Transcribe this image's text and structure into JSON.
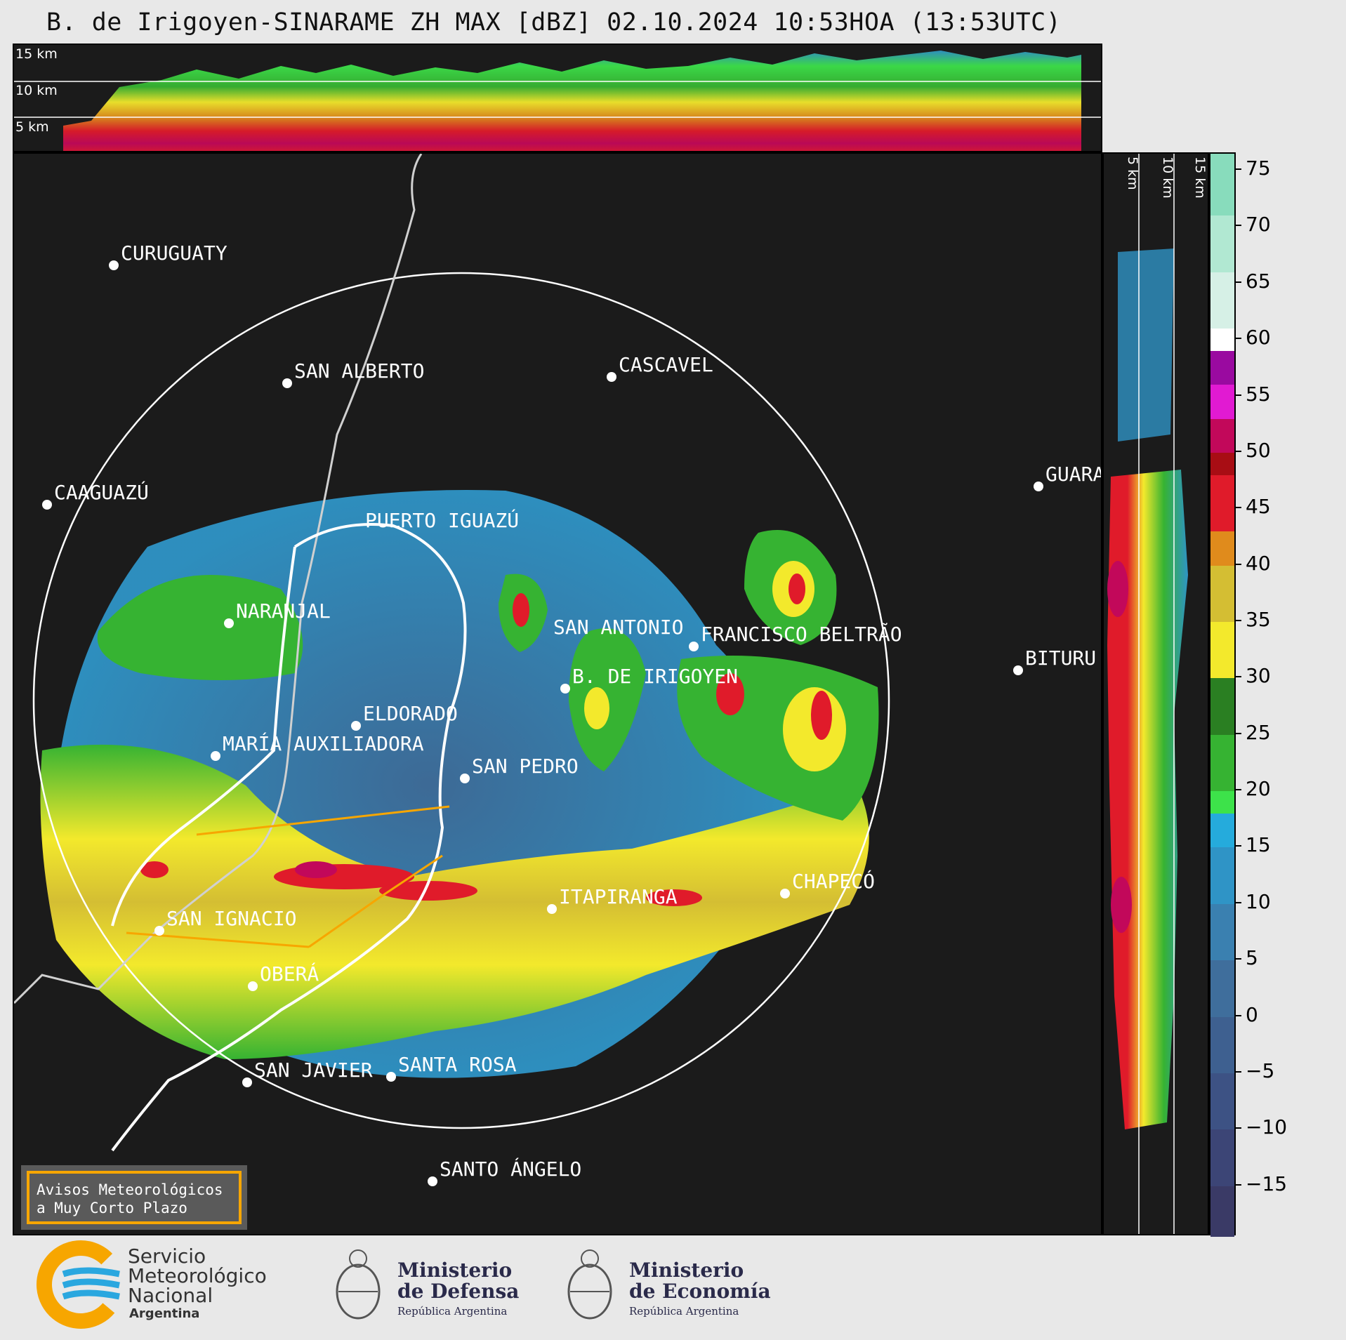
{
  "title": "B. de Irigoyen-SINARAME ZH MAX [dBZ] 02.10.2024 10:53HOA (13:53UTC)",
  "top_profile": {
    "height_labels": [
      "15 km",
      "10 km",
      "5 km"
    ]
  },
  "side_profile": {
    "height_labels": [
      "5 km",
      "10 km",
      "15 km"
    ]
  },
  "cities": [
    {
      "name": "CURUGUATY"
    },
    {
      "name": "SAN ALBERTO"
    },
    {
      "name": "CASCAVEL"
    },
    {
      "name": "CAAGUAZÚ"
    },
    {
      "name": "GUARA"
    },
    {
      "name": "PUERTO IGUAZÚ"
    },
    {
      "name": "NARANJAL"
    },
    {
      "name": "SAN ANTONIO"
    },
    {
      "name": "FRANCISCO BELTRÃO"
    },
    {
      "name": "BITURU"
    },
    {
      "name": "B. DE IRIGOYEN"
    },
    {
      "name": "ELDORADO"
    },
    {
      "name": "MARÍA AUXILIADORA"
    },
    {
      "name": "SAN PEDRO"
    },
    {
      "name": "ITAPIRANGA"
    },
    {
      "name": "CHAPECÓ"
    },
    {
      "name": "SAN IGNACIO"
    },
    {
      "name": "OBERÁ"
    },
    {
      "name": "SAN JAVIER"
    },
    {
      "name": "SANTA ROSA"
    },
    {
      "name": "SANTO ÁNGELO"
    }
  ],
  "colorbar": {
    "unit": "dBZ",
    "ticks": [
      "75",
      "70",
      "65",
      "60",
      "55",
      "50",
      "45",
      "40",
      "35",
      "30",
      "25",
      "20",
      "15",
      "10",
      "5",
      "0",
      "−5",
      "−10",
      "−15"
    ],
    "range": [
      -19.5,
      76.5
    ],
    "colors": [
      {
        "from": -19.5,
        "to": -15,
        "color": "#3a3a66"
      },
      {
        "from": -15,
        "to": -10,
        "color": "#3c4576"
      },
      {
        "from": -10,
        "to": -5,
        "color": "#3d5284"
      },
      {
        "from": -5,
        "to": 0,
        "color": "#3e6090"
      },
      {
        "from": 0,
        "to": 5,
        "color": "#3f6e9c"
      },
      {
        "from": 5,
        "to": 10,
        "color": "#3a80b0"
      },
      {
        "from": 10,
        "to": 15,
        "color": "#2f94c6"
      },
      {
        "from": 15,
        "to": 18,
        "color": "#25abdc"
      },
      {
        "from": 18,
        "to": 20,
        "color": "#3de24a"
      },
      {
        "from": 20,
        "to": 25,
        "color": "#36b332"
      },
      {
        "from": 25,
        "to": 30,
        "color": "#2a7f22"
      },
      {
        "from": 30,
        "to": 35,
        "color": "#f3e92c"
      },
      {
        "from": 35,
        "to": 40,
        "color": "#d4be33"
      },
      {
        "from": 40,
        "to": 43,
        "color": "#e08b1c"
      },
      {
        "from": 43,
        "to": 48,
        "color": "#e01b2a"
      },
      {
        "from": 48,
        "to": 50,
        "color": "#a80d14"
      },
      {
        "from": 50,
        "to": 53,
        "color": "#c2085a"
      },
      {
        "from": 53,
        "to": 56,
        "color": "#e11ad2"
      },
      {
        "from": 56,
        "to": 59,
        "color": "#9a0aa0"
      },
      {
        "from": 59,
        "to": 61,
        "color": "#ffffff"
      },
      {
        "from": 61,
        "to": 66,
        "color": "#d6f0e6"
      },
      {
        "from": 66,
        "to": 71,
        "color": "#b1e8d2"
      },
      {
        "from": 71,
        "to": 76.5,
        "color": "#88dcbc"
      }
    ]
  },
  "warning_box": {
    "line1": "Avisos Meteorológicos",
    "line2": "a Muy Corto Plazo"
  },
  "logos": {
    "smn": {
      "line1": "Servicio",
      "line2": "Meteorológico",
      "line3": "Nacional",
      "line4": "Argentina"
    },
    "defensa": {
      "line1": "Ministerio",
      "line2": "de Defensa",
      "line3": "República Argentina"
    },
    "economia": {
      "line1": "Ministerio",
      "line2": "de Economía",
      "line3": "República Argentina"
    }
  }
}
